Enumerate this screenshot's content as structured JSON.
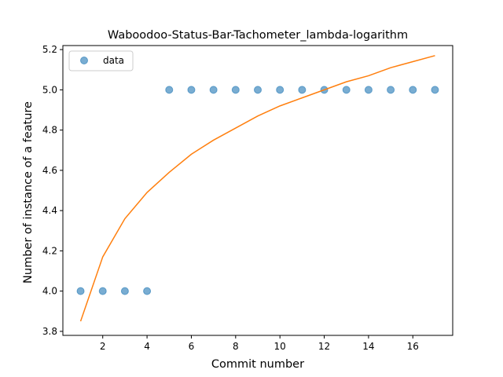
{
  "chart_data": {
    "type": "scatter",
    "title": "Waboodoo-Status-Bar-Tachometer_lambda-logarithm",
    "xlabel": "Commit number",
    "ylabel": "Number of instance of a feature",
    "xlim": [
      0.2,
      17.8
    ],
    "ylim": [
      3.78,
      5.22
    ],
    "x_ticks": [
      2,
      4,
      6,
      8,
      10,
      12,
      14,
      16
    ],
    "y_ticks": [
      3.8,
      4.0,
      4.2,
      4.4,
      4.6,
      4.8,
      5.0,
      5.2
    ],
    "x_tick_labels": [
      "2",
      "4",
      "6",
      "8",
      "10",
      "12",
      "14",
      "16"
    ],
    "y_tick_labels": [
      "3.8",
      "4.0",
      "4.2",
      "4.4",
      "4.6",
      "4.8",
      "5.0",
      "5.2"
    ],
    "legend_position": "upper-left",
    "series": [
      {
        "name": "data",
        "kind": "scatter",
        "color": "#1f77b4",
        "x": [
          1,
          2,
          3,
          4,
          5,
          6,
          7,
          8,
          9,
          10,
          11,
          12,
          13,
          14,
          15,
          16,
          17
        ],
        "y": [
          4,
          4,
          4,
          4,
          5,
          5,
          5,
          5,
          5,
          5,
          5,
          5,
          5,
          5,
          5,
          5,
          5
        ]
      },
      {
        "kind": "line",
        "color": "#ff7f0e",
        "x": [
          1,
          2,
          3,
          4,
          5,
          6,
          7,
          8,
          9,
          10,
          11,
          12,
          13,
          14,
          15,
          16,
          17
        ],
        "y": [
          3.85,
          4.17,
          4.36,
          4.49,
          4.59,
          4.68,
          4.75,
          4.81,
          4.87,
          4.92,
          4.96,
          5.0,
          5.04,
          5.07,
          5.11,
          5.14,
          5.17
        ]
      }
    ]
  }
}
